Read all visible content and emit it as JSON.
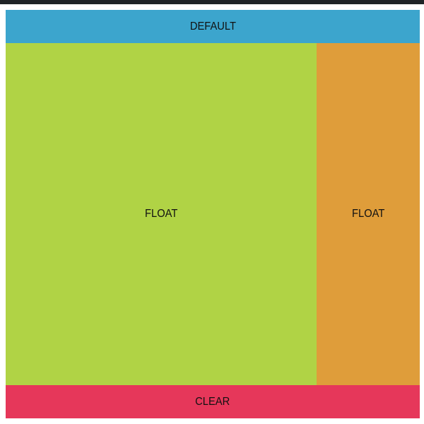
{
  "sections": {
    "default": {
      "label": "DEFAULT",
      "color": "#3ca5cd"
    },
    "float_left": {
      "label": "FLOAT",
      "color": "#b0d345"
    },
    "float_right": {
      "label": "FLOAT",
      "color": "#df9d3a"
    },
    "clear": {
      "label": "CLEAR",
      "color": "#e6375a"
    }
  }
}
